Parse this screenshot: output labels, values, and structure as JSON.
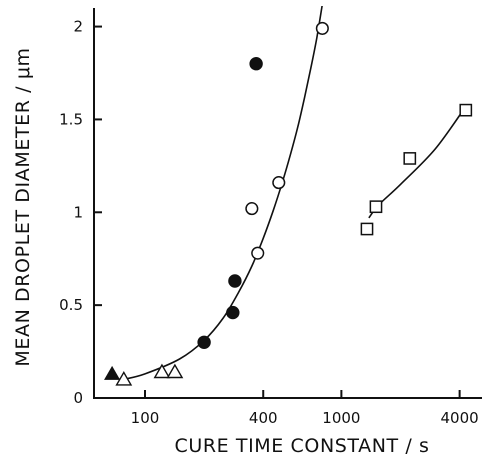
{
  "chart_data": {
    "type": "scatter",
    "title": "",
    "xlabel": "CURE TIME CONSTANT / s",
    "ylabel": "MEAN DROPLET DIAMETER / μm",
    "xscale": "log",
    "xlim": [
      55,
      5200
    ],
    "ylim": [
      0,
      2.1
    ],
    "xticks": [
      100,
      400,
      1000,
      4000
    ],
    "xtick_labels": [
      "100",
      "400",
      "1000",
      "4000"
    ],
    "yticks": [
      0,
      0.5,
      1,
      1.5,
      2
    ],
    "ytick_labels": [
      "0",
      "0.5",
      "1",
      "1.5",
      "2"
    ],
    "grid": false,
    "legend": "none",
    "series": [
      {
        "marker": "filled-triangle",
        "x": [
          68
        ],
        "y": [
          0.13
        ]
      },
      {
        "marker": "open-triangle",
        "x": [
          78,
          122,
          142
        ],
        "y": [
          0.1,
          0.14,
          0.14
        ]
      },
      {
        "marker": "filled-circle",
        "x": [
          200,
          280,
          287,
          368
        ],
        "y": [
          0.3,
          0.46,
          0.63,
          1.8
        ]
      },
      {
        "marker": "open-circle",
        "x": [
          350,
          375,
          480,
          800
        ],
        "y": [
          1.02,
          0.78,
          1.16,
          1.99
        ]
      },
      {
        "marker": "open-square",
        "x": [
          1350,
          1500,
          2230,
          4300
        ],
        "y": [
          0.91,
          1.03,
          1.29,
          1.55
        ]
      }
    ],
    "curves": [
      {
        "x": [
          78,
          100,
          150,
          200,
          250,
          300,
          350,
          400,
          450,
          500,
          550,
          600,
          650,
          700,
          750,
          800
        ],
        "y": [
          0.1,
          0.13,
          0.21,
          0.31,
          0.43,
          0.57,
          0.71,
          0.86,
          1.01,
          1.16,
          1.31,
          1.46,
          1.62,
          1.78,
          1.94,
          2.12
        ]
      },
      {
        "x": [
          1380,
          1550,
          2000,
          3000,
          4300
        ],
        "y": [
          0.97,
          1.04,
          1.15,
          1.34,
          1.57
        ]
      }
    ]
  }
}
